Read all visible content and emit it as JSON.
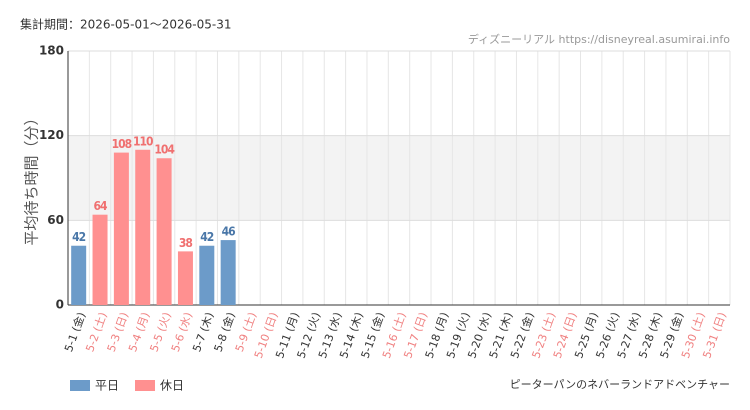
{
  "chart_data": {
    "type": "bar",
    "period": "集計期間：2026-05-01～2026-05-31",
    "source": "ディズニーリアル https://disneyreal.asumirai.info",
    "ylabel": "平均待ち時間（分）",
    "attraction": "ピーターパンのネバーランドアドベンチャー",
    "categories": [
      "5-1 (金)",
      "5-2 (土)",
      "5-3 (日)",
      "5-4 (月)",
      "5-5 (火)",
      "5-6 (水)",
      "5-7 (木)",
      "5-8 (金)",
      "5-9 (土)",
      "5-10 (日)",
      "5-11 (月)",
      "5-12 (火)",
      "5-13 (水)",
      "5-14 (木)",
      "5-15 (金)",
      "5-16 (土)",
      "5-17 (日)",
      "5-18 (月)",
      "5-19 (火)",
      "5-20 (水)",
      "5-21 (木)",
      "5-22 (金)",
      "5-23 (土)",
      "5-24 (日)",
      "5-25 (月)",
      "5-26 (火)",
      "5-27 (水)",
      "5-28 (木)",
      "5-29 (金)",
      "5-30 (土)",
      "5-31 (日)"
    ],
    "category_colors": [
      "#333",
      "#f08080",
      "#f08080",
      "#f08080",
      "#f08080",
      "#f08080",
      "#333",
      "#333",
      "#f08080",
      "#f08080",
      "#333",
      "#333",
      "#333",
      "#333",
      "#333",
      "#f08080",
      "#f08080",
      "#333",
      "#333",
      "#333",
      "#333",
      "#333",
      "#f08080",
      "#f08080",
      "#333",
      "#333",
      "#333",
      "#333",
      "#333",
      "#f08080",
      "#f08080"
    ],
    "series": [
      {
        "name": "平日",
        "color": "#6c9bc9",
        "label_color": "#4a77a8",
        "values": [
          42,
          null,
          null,
          null,
          null,
          null,
          42,
          46,
          null,
          null,
          null,
          null,
          null,
          null,
          null,
          null,
          null,
          null,
          null,
          null,
          null,
          null,
          null,
          null,
          null,
          null,
          null,
          null,
          null,
          null,
          null
        ]
      },
      {
        "name": "休日",
        "color": "#ff9090",
        "label_color": "#f07070",
        "values": [
          null,
          64,
          108,
          110,
          104,
          38,
          null,
          null,
          null,
          null,
          null,
          null,
          null,
          null,
          null,
          null,
          null,
          null,
          null,
          null,
          null,
          null,
          null,
          null,
          null,
          null,
          null,
          null,
          null,
          null,
          null
        ]
      }
    ],
    "ylim": [
      0,
      180
    ],
    "yticks": [
      0,
      60,
      120,
      180
    ],
    "yband": [
      60,
      120
    ],
    "grid": true
  }
}
